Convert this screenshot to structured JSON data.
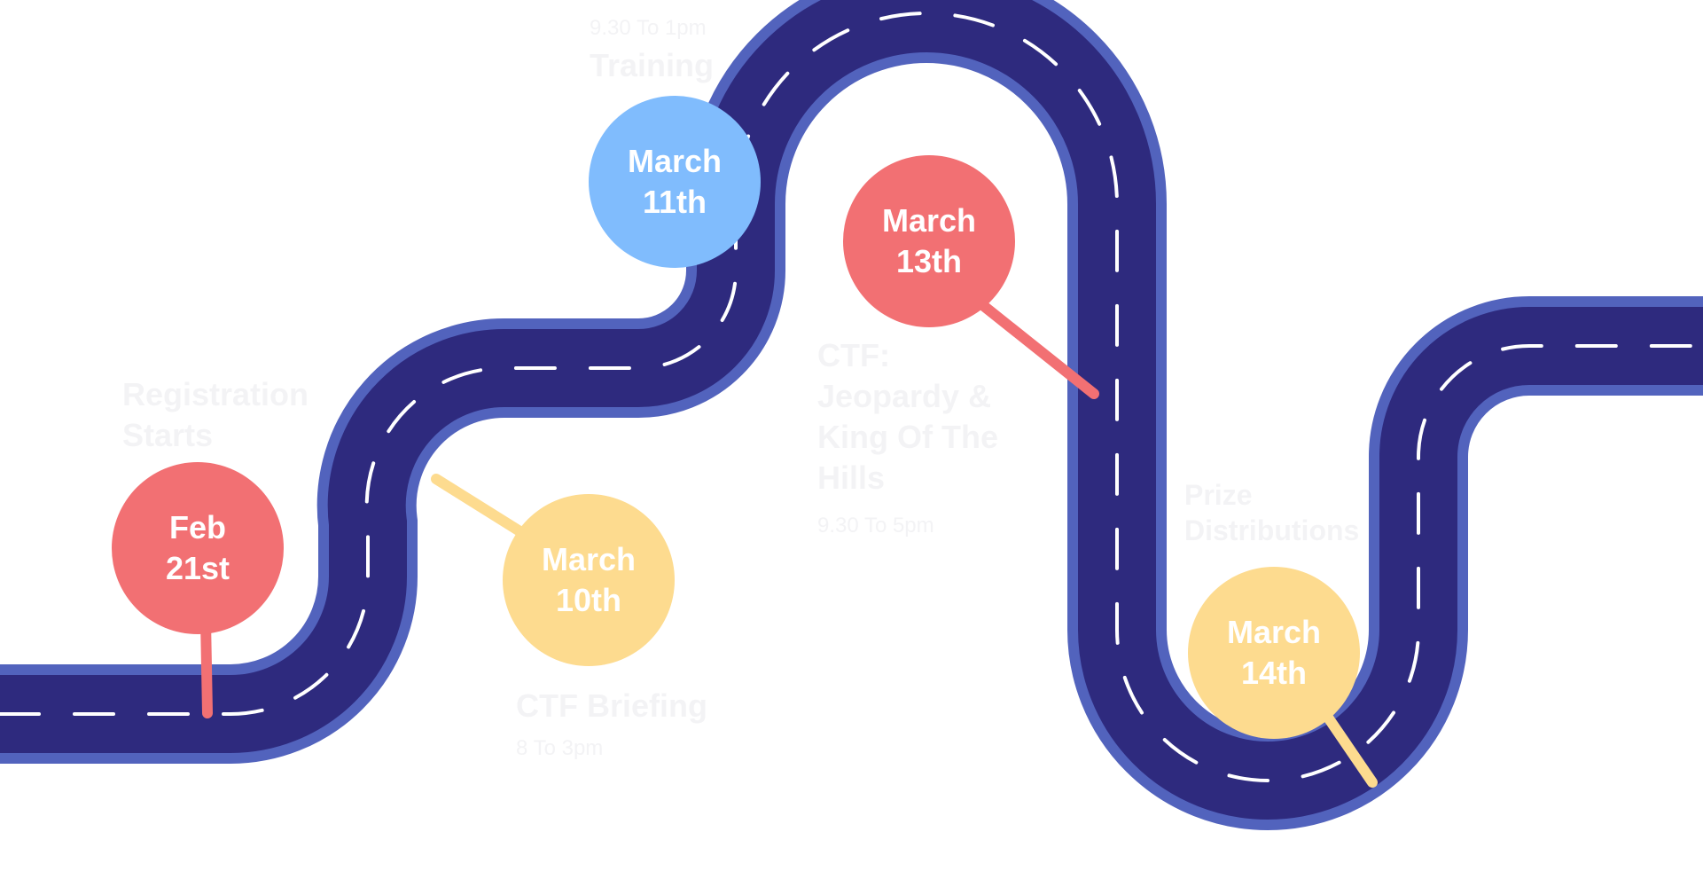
{
  "colors": {
    "road": "#2e2a7e",
    "road_edge": "#5263bd",
    "lane": "#ffffff",
    "red": "#f27073",
    "yellow": "#fddb8f",
    "blue": "#80bcfd",
    "label_text": "#f3f3f5"
  },
  "milestones": [
    {
      "id": "registration",
      "pin_line1": "Feb",
      "pin_line2": "21st",
      "title_line1": "Registration",
      "title_line2": "Starts",
      "color": "#f27073"
    },
    {
      "id": "briefing",
      "pin_line1": "March",
      "pin_line2": "10th",
      "title": "CTF Briefing",
      "time": "8 To 3pm",
      "color": "#fddb8f"
    },
    {
      "id": "training",
      "pin_line1": "March",
      "pin_line2": "11th",
      "title": "Training",
      "time": "9.30 To 1pm",
      "color": "#80bcfd"
    },
    {
      "id": "ctf",
      "pin_line1": "March",
      "pin_line2": "13th",
      "title_line1": "CTF:",
      "title_line2": "Jeopardy &",
      "title_line3": "King Of The",
      "title_line4": "Hills",
      "time": "9.30 To 5pm",
      "color": "#f27073"
    },
    {
      "id": "prizes",
      "pin_line1": "March",
      "pin_line2": "14th",
      "title_line1": "Prize",
      "title_line2": "Distributions",
      "color": "#fddb8f"
    }
  ]
}
